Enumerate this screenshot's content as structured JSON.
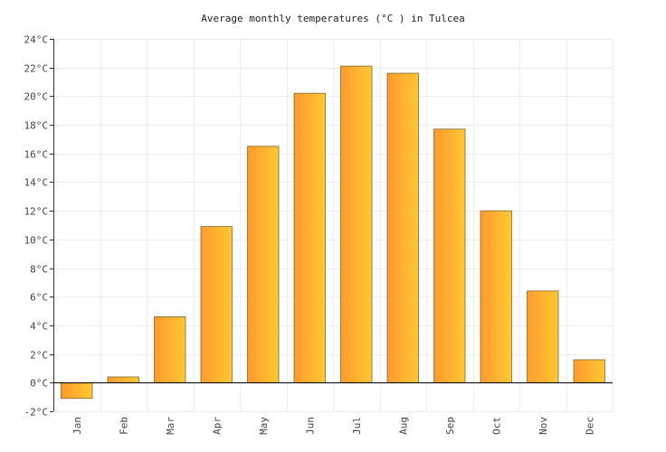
{
  "chart_data": {
    "type": "bar",
    "title": "Average monthly temperatures (°C ) in Tulcea",
    "categories": [
      "Jan",
      "Feb",
      "Mar",
      "Apr",
      "May",
      "Jun",
      "Jul",
      "Aug",
      "Sep",
      "Oct",
      "Nov",
      "Dec"
    ],
    "values": [
      -1.1,
      0.4,
      4.6,
      10.9,
      16.5,
      20.2,
      22.1,
      21.6,
      17.7,
      12.0,
      6.4,
      1.6
    ],
    "ylim": [
      -2,
      24
    ],
    "yticks": [
      "-2°C",
      "0°C",
      "2°C",
      "4°C",
      "6°C",
      "8°C",
      "10°C",
      "12°C",
      "14°C",
      "16°C",
      "18°C",
      "20°C",
      "22°C",
      "24°C"
    ],
    "xlabel": "",
    "ylabel": "",
    "grid": true,
    "colors": {
      "bar_start": "#ff9a2e",
      "bar_end": "#ffc832",
      "bar_border": "#7a6a3a"
    }
  }
}
